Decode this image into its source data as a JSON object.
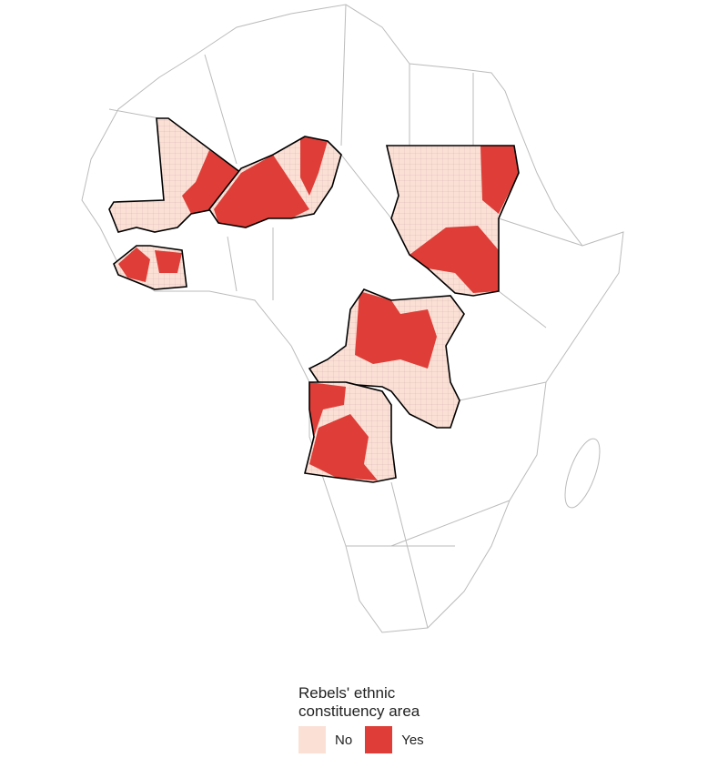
{
  "legend": {
    "title": "Rebels' ethnic constituency area",
    "items": [
      {
        "label": "No",
        "color": "#fbe0d6"
      },
      {
        "label": "Yes",
        "color": "#de3e37"
      }
    ]
  }
}
